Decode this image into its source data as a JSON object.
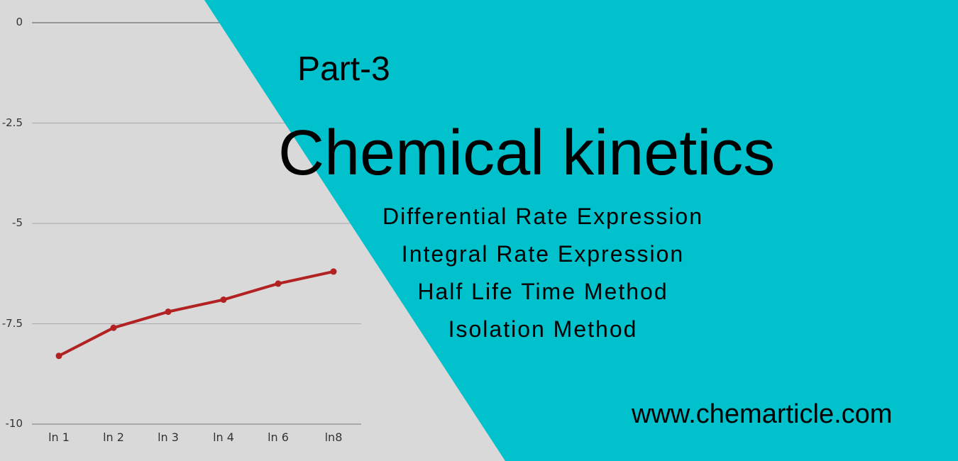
{
  "header": {
    "part": "Part-3",
    "title": "Chemical kinetics",
    "topics": [
      "Differential Rate Expression",
      "Integral Rate Expression",
      "Half Life Time Method",
      "Isolation Method"
    ],
    "url": "www.chemarticle.com"
  },
  "colors": {
    "background": "#d9d9d9",
    "accent": "#00c1cc",
    "line": "#b22222",
    "text": "#000000"
  },
  "chart_data": {
    "type": "line",
    "title": "",
    "xlabel": "",
    "ylabel": "",
    "categories": [
      "ln 1",
      "ln 2",
      "ln 3",
      "ln 4",
      "ln 6",
      "ln8"
    ],
    "series": [
      {
        "name": "",
        "values": [
          -8.3,
          -7.6,
          -7.2,
          -6.9,
          -6.5,
          -6.2
        ]
      }
    ],
    "yticks": [
      "0",
      "-2.5",
      "-5",
      "-7.5",
      "-10"
    ],
    "ylim": [
      -10,
      0
    ],
    "grid": true,
    "legend": "none"
  }
}
